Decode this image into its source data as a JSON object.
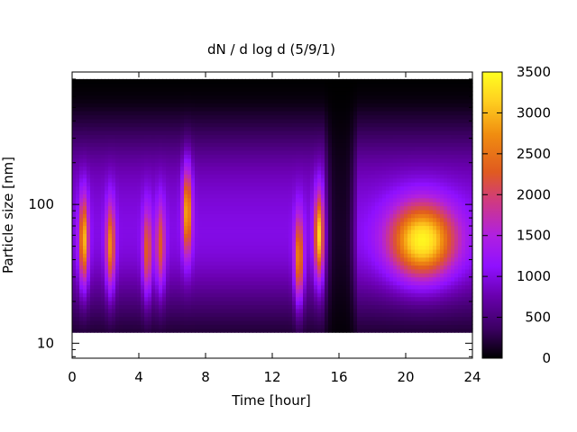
{
  "chart_data": {
    "type": "heatmap",
    "title": "dN / d log d (5/9/1)",
    "xlabel": "Time [hour]",
    "ylabel": "Particle size [nm]",
    "x_range": [
      0,
      24
    ],
    "y_range": [
      7.8,
      900
    ],
    "y_scale": "log",
    "x_ticks": [
      "0",
      "4",
      "8",
      "12",
      "16",
      "20",
      "24"
    ],
    "x_tick_values": [
      0,
      4,
      8,
      12,
      16,
      20,
      24
    ],
    "y_ticks": [
      "10",
      "100"
    ],
    "y_tick_values": [
      10,
      100
    ],
    "colorbar": {
      "range": [
        0,
        3500
      ],
      "ticks": [
        "0",
        "500",
        "1000",
        "1500",
        "2000",
        "2500",
        "3000",
        "3500"
      ],
      "tick_values": [
        0,
        500,
        1000,
        1500,
        2000,
        2500,
        3000,
        3500
      ],
      "palette": [
        "#000000",
        "#3a0060",
        "#6a00b0",
        "#8f10ff",
        "#b020e0",
        "#d03a80",
        "#e05a20",
        "#f08c10",
        "#ffd020",
        "#ffff20"
      ]
    },
    "grid": false,
    "size_range_nm": [
      12,
      800
    ],
    "bursts": [
      {
        "time_h": 0.7,
        "peak_size_nm": 55,
        "intensity": 2600
      },
      {
        "time_h": 2.3,
        "peak_size_nm": 50,
        "intensity": 2300
      },
      {
        "time_h": 4.5,
        "peak_size_nm": 45,
        "intensity": 2000
      },
      {
        "time_h": 5.3,
        "peak_size_nm": 50,
        "intensity": 1900
      },
      {
        "time_h": 6.9,
        "peak_size_nm": 90,
        "intensity": 2600
      },
      {
        "time_h": 13.6,
        "peak_size_nm": 40,
        "intensity": 2400
      },
      {
        "time_h": 14.8,
        "peak_size_nm": 60,
        "intensity": 2700
      },
      {
        "time_h": 21.0,
        "peak_size_nm": 55,
        "intensity": 3000
      }
    ],
    "background_level": 1000,
    "low_period_hours": [
      15.2,
      17.0
    ]
  }
}
